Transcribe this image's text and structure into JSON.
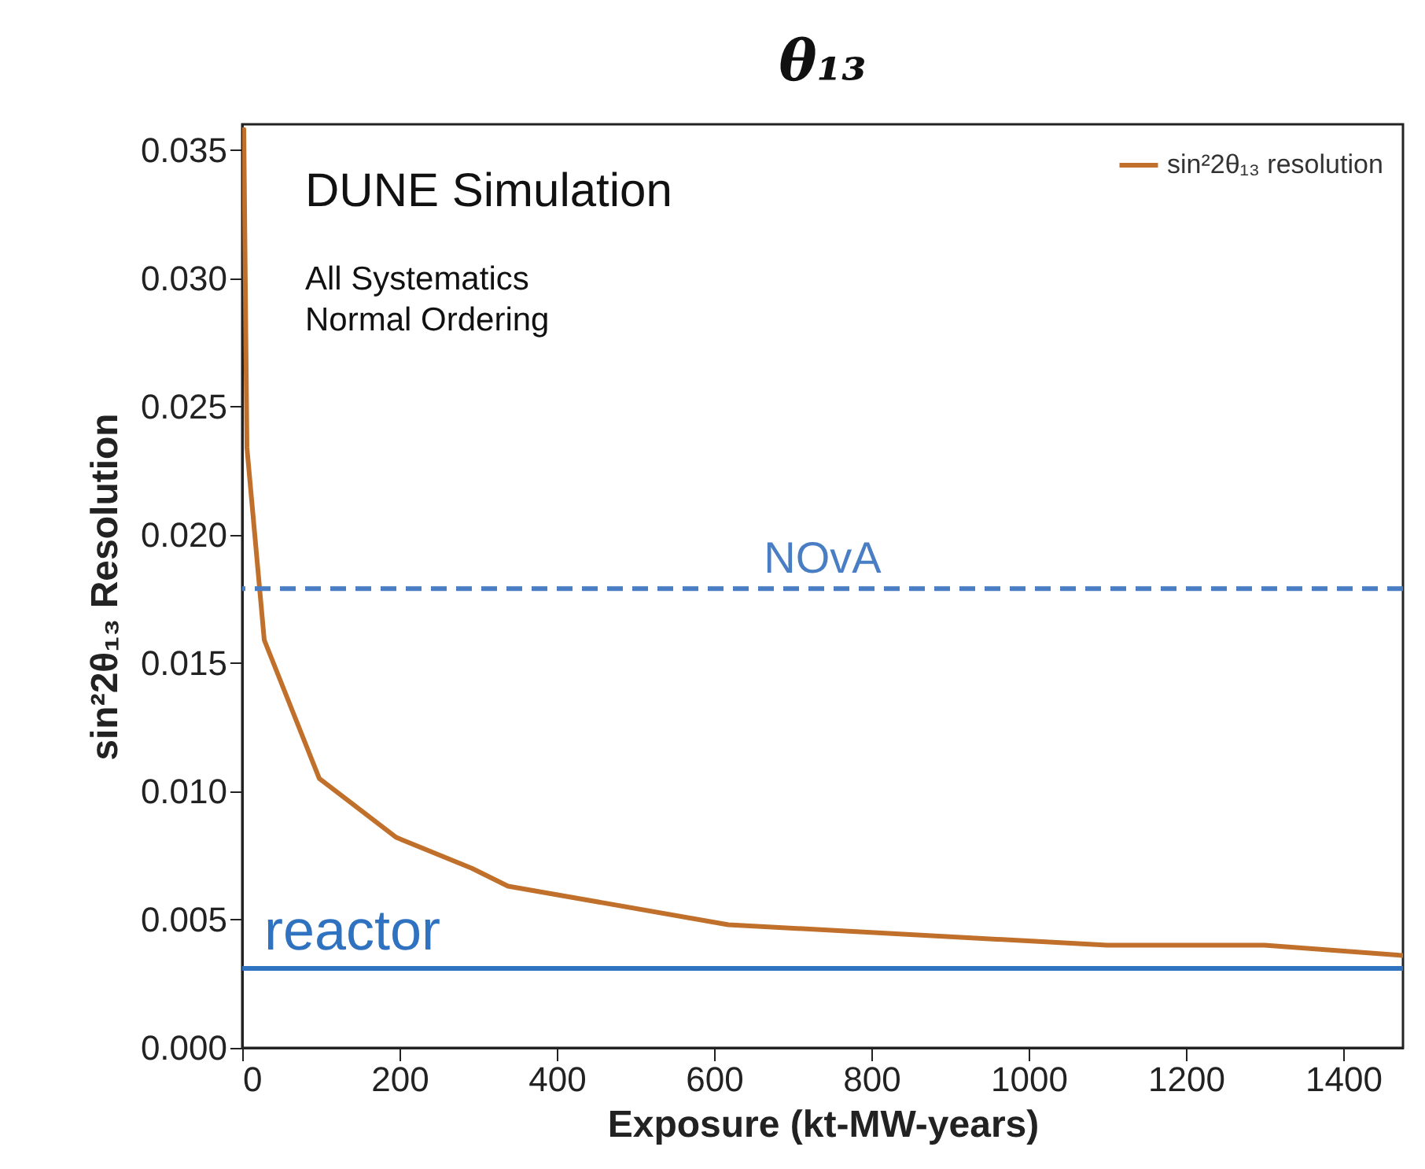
{
  "chart_data": {
    "type": "line",
    "title": "θ₁₃",
    "xlabel": "Exposure (kt-MW-years)",
    "ylabel": "sin²2θ₁₃ Resolution",
    "x": [
      2,
      6,
      28,
      98,
      196,
      292,
      338,
      618,
      1100,
      1300,
      1476
    ],
    "series": [
      {
        "name": "sin²2θ₁₃ resolution",
        "color": "#c0702a",
        "values": [
          0.0358,
          0.0234,
          0.0159,
          0.0105,
          0.0082,
          0.007,
          0.0063,
          0.0048,
          0.004,
          0.004,
          0.0036
        ]
      }
    ],
    "xlim": [
      0,
      1476
    ],
    "xticks": [
      0,
      200,
      400,
      600,
      800,
      1000,
      1200,
      1400
    ],
    "ylim": [
      0,
      0.036
    ],
    "yticks": [
      {
        "value": 0,
        "label": "0.000"
      },
      {
        "value": 0.005,
        "label": "0.005"
      },
      {
        "value": 0.01,
        "label": "0.010"
      },
      {
        "value": 0.015,
        "label": "0.015"
      },
      {
        "value": 0.02,
        "label": "0.020"
      },
      {
        "value": 0.025,
        "label": "0.025"
      },
      {
        "value": 0.03,
        "label": "0.030"
      },
      {
        "value": 0.035,
        "label": "0.035"
      }
    ],
    "ref_lines": [
      {
        "axis": "y",
        "value": 0.0179,
        "label": "NOvA",
        "color": "#4a7ec4",
        "line_style": "dashed"
      },
      {
        "axis": "y",
        "value": 0.0031,
        "label": "reactor",
        "color": "#2f72c0",
        "line_style": "solid"
      }
    ],
    "annotations": [
      "DUNE Simulation",
      "All Systematics",
      "Normal Ordering"
    ],
    "legend": "top right",
    "grid": false,
    "marker": "none",
    "line_style": "solid"
  }
}
